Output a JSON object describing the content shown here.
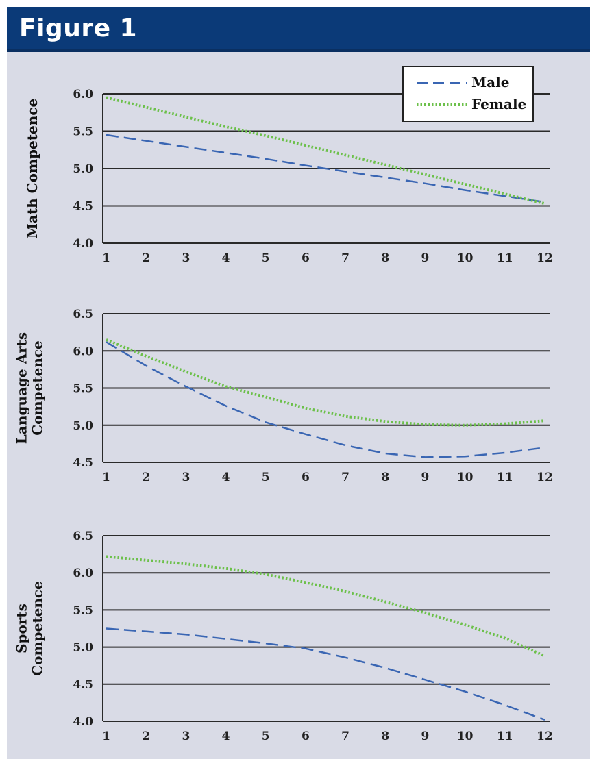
{
  "header": {
    "title": "Figure 1"
  },
  "legend": {
    "male_label": "Male",
    "female_label": "Female"
  },
  "colors": {
    "male": "#3a66b3",
    "female": "#6cc04a",
    "header": "#0b3a78",
    "panel": "#d9dbe6",
    "grid": "#222222"
  },
  "chart_data": [
    {
      "type": "line",
      "ylabel": "Math Competence",
      "ylim": [
        4.0,
        6.0
      ],
      "yticks": [
        "6.0",
        "5.5",
        "5.0",
        "4.5",
        "4.0"
      ],
      "x": [
        1,
        2,
        3,
        4,
        5,
        6,
        7,
        8,
        9,
        10,
        11,
        12
      ],
      "xticks": [
        "1",
        "2",
        "3",
        "4",
        "5",
        "6",
        "7",
        "8",
        "9",
        "10",
        "11",
        "12"
      ],
      "legend_position": "top-right",
      "series": [
        {
          "name": "Male",
          "values": [
            5.45,
            5.37,
            5.29,
            5.21,
            5.13,
            5.04,
            4.96,
            4.88,
            4.8,
            4.71,
            4.63,
            4.55
          ]
        },
        {
          "name": "Female",
          "values": [
            5.95,
            5.82,
            5.69,
            5.56,
            5.44,
            5.31,
            5.18,
            5.05,
            4.92,
            4.79,
            4.66,
            4.53
          ]
        }
      ]
    },
    {
      "type": "line",
      "ylabel": "Language Arts Competence",
      "ylim": [
        4.5,
        6.5
      ],
      "yticks": [
        "6.5",
        "6.0",
        "5.5",
        "5.0",
        "4.5"
      ],
      "x": [
        1,
        2,
        3,
        4,
        5,
        6,
        7,
        8,
        9,
        10,
        11,
        12
      ],
      "xticks": [
        "1",
        "2",
        "3",
        "4",
        "5",
        "6",
        "7",
        "8",
        "9",
        "10",
        "11",
        "12"
      ],
      "series": [
        {
          "name": "Male",
          "values": [
            6.12,
            5.8,
            5.52,
            5.26,
            5.04,
            4.88,
            4.73,
            4.62,
            4.57,
            4.58,
            4.63,
            4.7
          ]
        },
        {
          "name": "Female",
          "values": [
            6.15,
            5.93,
            5.72,
            5.52,
            5.38,
            5.23,
            5.12,
            5.05,
            5.01,
            5.0,
            5.02,
            5.06
          ]
        }
      ]
    },
    {
      "type": "line",
      "ylabel": "Sports Competence",
      "ylim": [
        4.0,
        6.5
      ],
      "yticks": [
        "6.5",
        "6.0",
        "5.5",
        "5.0",
        "4.5",
        "4.0"
      ],
      "x": [
        1,
        2,
        3,
        4,
        5,
        6,
        7,
        8,
        9,
        10,
        11,
        12
      ],
      "xticks": [
        "1",
        "2",
        "3",
        "4",
        "5",
        "6",
        "7",
        "8",
        "9",
        "10",
        "11",
        "12"
      ],
      "series": [
        {
          "name": "Male",
          "values": [
            5.25,
            5.21,
            5.17,
            5.11,
            5.05,
            4.98,
            4.86,
            4.72,
            4.56,
            4.4,
            4.22,
            4.02
          ]
        },
        {
          "name": "Female",
          "values": [
            6.22,
            6.17,
            6.12,
            6.06,
            5.98,
            5.87,
            5.75,
            5.61,
            5.46,
            5.3,
            5.12,
            4.88
          ]
        }
      ]
    }
  ]
}
